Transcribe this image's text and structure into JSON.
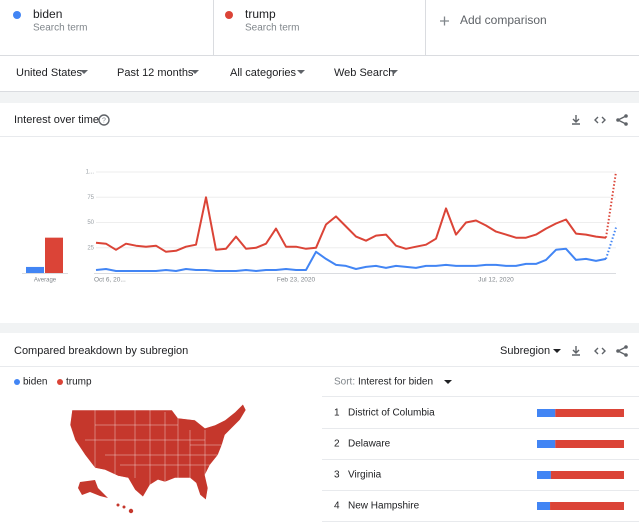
{
  "search_terms": [
    {
      "subtitle": "Search term"
    },
    {
      "subtitle": "Search term"
    }
  ],
  "add_comparison": "Add comparison",
  "filters": [
    "United States",
    "Past 12 months",
    "All categories",
    "Web Search"
  ],
  "interest_over_time": {
    "title": "Interest over time"
  },
  "chart_data": [
    {
      "type": "bar",
      "categories": [
        "Average"
      ],
      "series": [
        {
          "name": "biden",
          "color": "#4285f4",
          "values": [
            6
          ]
        },
        {
          "name": "trump",
          "color": "#db4437",
          "values": [
            35
          ]
        }
      ],
      "ylim": [
        0,
        100
      ]
    },
    {
      "type": "line",
      "categories": [
        "Oct 6, 20...",
        null,
        null,
        null,
        null,
        null,
        null,
        null,
        null,
        null,
        null,
        null,
        null,
        null,
        null,
        null,
        null,
        null,
        null,
        null,
        "Feb 23, 2020",
        null,
        null,
        null,
        null,
        null,
        null,
        null,
        null,
        null,
        null,
        null,
        null,
        null,
        null,
        null,
        null,
        null,
        null,
        null,
        "Jul 12, 2020",
        null,
        null,
        null,
        null,
        null,
        null,
        null,
        null,
        null,
        null,
        null,
        null
      ],
      "series": [
        {
          "name": "biden",
          "color": "#4285f4",
          "values": [
            3,
            4,
            2,
            2,
            2,
            2,
            2,
            3,
            2,
            4,
            3,
            3,
            2,
            2,
            2,
            3,
            2,
            3,
            3,
            4,
            3,
            3,
            21,
            14,
            8,
            7,
            4,
            6,
            7,
            5,
            7,
            6,
            5,
            7,
            7,
            8,
            7,
            7,
            7,
            8,
            8,
            7,
            7,
            9,
            9,
            13,
            23,
            24,
            13,
            14,
            12,
            14,
            45
          ]
        },
        {
          "name": "trump",
          "color": "#db4437",
          "values": [
            30,
            29,
            23,
            29,
            27,
            26,
            27,
            21,
            22,
            26,
            28,
            75,
            23,
            24,
            36,
            24,
            25,
            29,
            44,
            26,
            26,
            24,
            25,
            48,
            56,
            46,
            36,
            32,
            37,
            38,
            27,
            24,
            26,
            28,
            34,
            64,
            38,
            50,
            52,
            47,
            41,
            38,
            35,
            35,
            38,
            44,
            49,
            53,
            39,
            38,
            36,
            35,
            100
          ]
        }
      ],
      "ylim": [
        0,
        100
      ],
      "yticks": [
        25,
        50,
        75,
        {
          "value": 100,
          "label": "1..."
        }
      ],
      "grid": true
    }
  ],
  "subregion": {
    "title": "Compared breakdown by subregion",
    "resolution": "Subregion",
    "sort_label": "Sort:",
    "sort_value": "Interest for biden",
    "rows": [
      {
        "rank": "1",
        "name": "District of Columbia",
        "values": [
          21,
          79
        ]
      },
      {
        "rank": "2",
        "name": "Delaware",
        "values": [
          21,
          79
        ]
      },
      {
        "rank": "3",
        "name": "Virginia",
        "values": [
          16,
          84
        ]
      },
      {
        "rank": "4",
        "name": "New Hampshire",
        "values": [
          15,
          85
        ]
      }
    ]
  }
}
